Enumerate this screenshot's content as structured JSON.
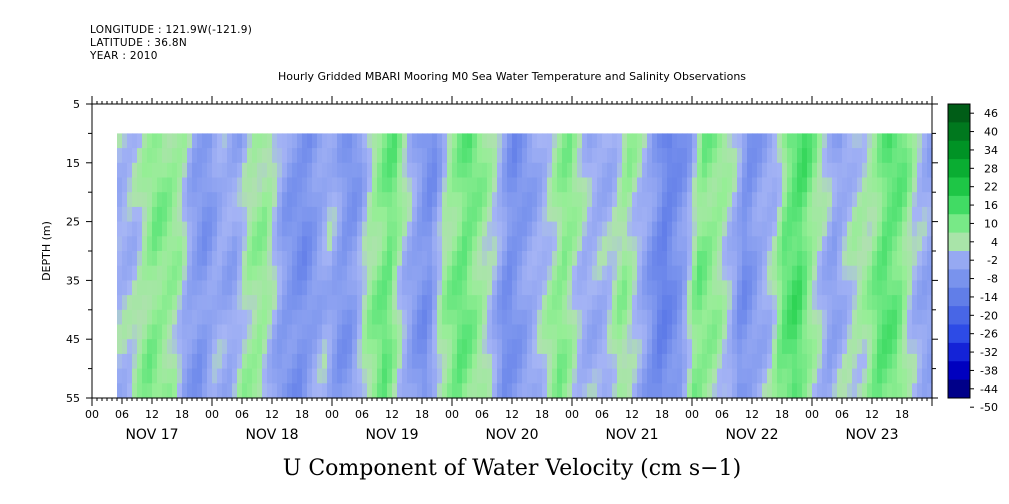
{
  "header": {
    "longitude": "LONGITUDE : 121.9W(-121.9)",
    "latitude": "LATITUDE : 36.8N",
    "year": "YEAR : 2010"
  },
  "chart_data": {
    "type": "heatmap",
    "title": "Hourly Gridded MBARI Mooring M0 Sea Water Temperature and Salinity Observations",
    "xlabel": "U Component of Water Velocity (cm s−1)",
    "ylabel": "DEPTH (m)",
    "ylim": [
      5,
      55
    ],
    "y_reversed": true,
    "y_ticks": [
      5,
      15,
      25,
      35,
      45,
      55
    ],
    "x_hour_ticks": [
      "00",
      "06",
      "12",
      "18",
      "00",
      "06",
      "12",
      "18",
      "00",
      "06",
      "12",
      "18",
      "00",
      "06",
      "12",
      "18",
      "00",
      "06",
      "12",
      "18",
      "00",
      "06",
      "12",
      "18",
      "00",
      "06",
      "12",
      "18"
    ],
    "x_day_labels": [
      "NOV 17",
      "NOV 18",
      "NOV 19",
      "NOV 20",
      "NOV 21",
      "NOV 22",
      "NOV 23"
    ],
    "colorbar_levels": [
      "46",
      "40",
      "34",
      "28",
      "22",
      "16",
      "10",
      "4",
      "-2",
      "-8",
      "-14",
      "-20",
      "-26",
      "-32",
      "-38",
      "-44",
      "-50"
    ],
    "data_depth_range": [
      10,
      55
    ],
    "data_start_hour": 5,
    "x_scale_hours": 168,
    "time_profile_hourly": [
      [
        5,
        -3
      ],
      [
        8,
        -2
      ],
      [
        12,
        6
      ],
      [
        15,
        4
      ],
      [
        17,
        2
      ],
      [
        19,
        -6
      ],
      [
        22,
        -10
      ],
      [
        25,
        -4
      ],
      [
        28,
        -6
      ],
      [
        31,
        2
      ],
      [
        34,
        4
      ],
      [
        38,
        -8
      ],
      [
        42,
        -12
      ],
      [
        44,
        -8
      ],
      [
        47,
        -3
      ],
      [
        50,
        -10
      ],
      [
        52,
        -9
      ],
      [
        55,
        2
      ],
      [
        59,
        9
      ],
      [
        62,
        -2
      ],
      [
        65,
        -9
      ],
      [
        67,
        -12
      ],
      [
        70,
        2
      ],
      [
        74,
        9
      ],
      [
        77,
        4
      ],
      [
        80,
        -2
      ],
      [
        83,
        -12
      ],
      [
        86,
        -8
      ],
      [
        90,
        -2
      ],
      [
        94,
        6
      ],
      [
        98,
        -3
      ],
      [
        100,
        -4
      ],
      [
        103,
        -3
      ],
      [
        106,
        4
      ],
      [
        110,
        -5
      ],
      [
        114,
        -16
      ],
      [
        118,
        -8
      ],
      [
        121,
        7
      ],
      [
        125,
        3
      ],
      [
        128,
        -4
      ],
      [
        130,
        -12
      ],
      [
        133,
        -6
      ],
      [
        136,
        -2
      ],
      [
        138,
        8
      ],
      [
        141,
        12
      ],
      [
        144,
        2
      ],
      [
        148,
        -7
      ],
      [
        152,
        0
      ],
      [
        155,
        2
      ],
      [
        158,
        10
      ],
      [
        161,
        8
      ],
      [
        164,
        -2
      ],
      [
        167,
        -6
      ],
      [
        172,
        -5
      ]
    ]
  }
}
